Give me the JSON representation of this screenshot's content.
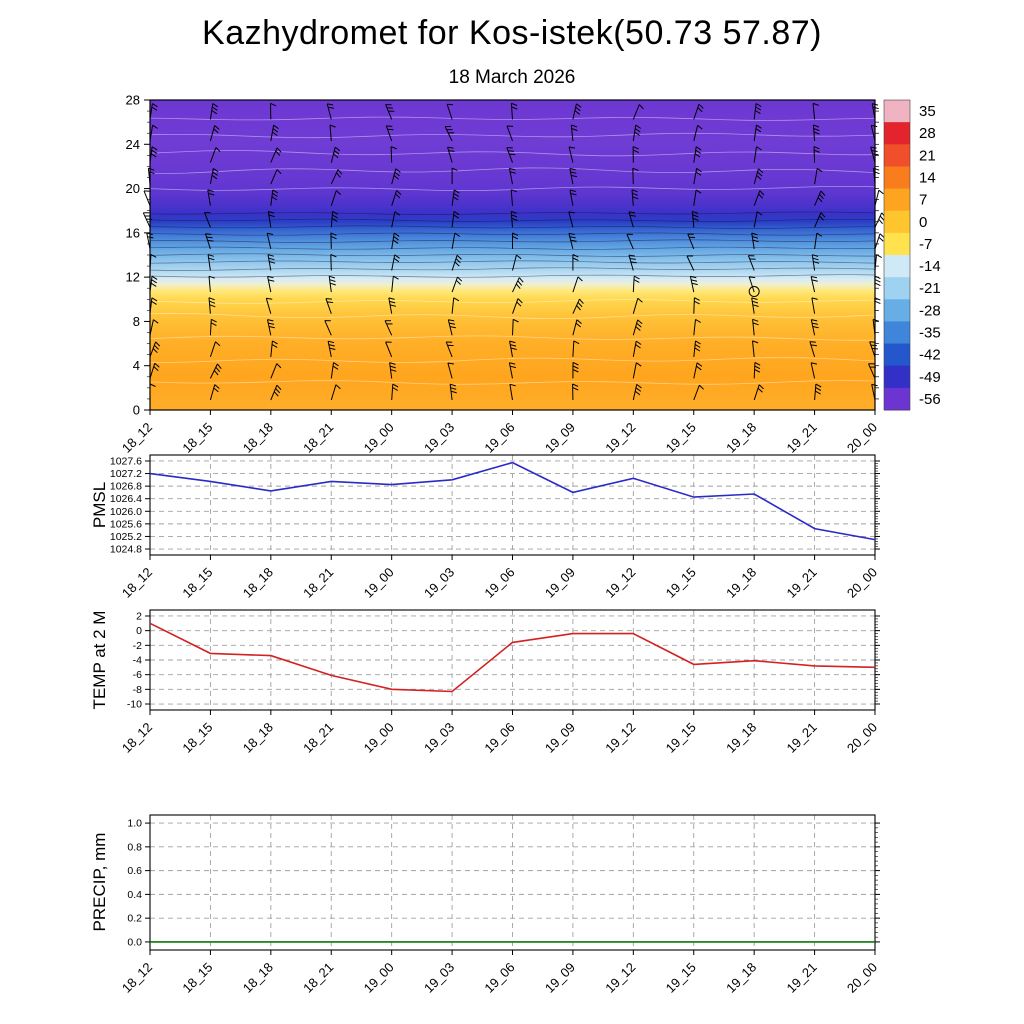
{
  "title": "Kazhydromet for Kos-istek(50.73 57.87)",
  "subtitle": "18 March 2026",
  "time_labels": [
    "18_12",
    "18_15",
    "18_18",
    "18_21",
    "19_00",
    "19_03",
    "19_06",
    "19_09",
    "19_12",
    "19_15",
    "19_18",
    "19_21",
    "20_00"
  ],
  "chart_data": [
    {
      "type": "heatmap",
      "name": "temperature-height-cross-section",
      "x": [
        "18_12",
        "18_15",
        "18_18",
        "18_21",
        "19_00",
        "19_03",
        "19_06",
        "19_09",
        "19_12",
        "19_15",
        "19_18",
        "19_21",
        "20_00"
      ],
      "ylim": [
        0,
        28
      ],
      "yticks": [
        0,
        4,
        8,
        12,
        16,
        20,
        24,
        28
      ],
      "overlay": "wind-barbs",
      "gradient_stops": [
        [
          28,
          "#6d38d2"
        ],
        [
          24,
          "#6f3cd4"
        ],
        [
          21,
          "#6838d2"
        ],
        [
          19.5,
          "#5d36d0"
        ],
        [
          18.5,
          "#4c33cc"
        ],
        [
          17.7,
          "#3a32c8"
        ],
        [
          17,
          "#2a3fc6"
        ],
        [
          16.3,
          "#3563d0"
        ],
        [
          15.5,
          "#4a87da"
        ],
        [
          14.5,
          "#67a9e4"
        ],
        [
          13.5,
          "#8cc4ec"
        ],
        [
          12.5,
          "#b3dbf2"
        ],
        [
          11.8,
          "#d9ecf5"
        ],
        [
          11.3,
          "#f2efc8"
        ],
        [
          10.8,
          "#ffe97e"
        ],
        [
          10,
          "#ffd84e"
        ],
        [
          8.5,
          "#ffc33a"
        ],
        [
          6,
          "#ffae27"
        ],
        [
          3,
          "#ffa51e"
        ],
        [
          0,
          "#ffae2a"
        ]
      ],
      "marker": {
        "time_index": 10,
        "height": 10.7
      },
      "colorbar": {
        "tick_labels": [
          "35",
          "28",
          "21",
          "14",
          "7",
          "0",
          "-7",
          "-14",
          "-21",
          "-28",
          "-35",
          "-42",
          "-49",
          "-56"
        ],
        "colors": [
          "#efb3c1",
          "#e3242c",
          "#ef4f2b",
          "#f97c1d",
          "#fda521",
          "#ffc52e",
          "#ffe24e",
          "#cfe9f6",
          "#9ed2f0",
          "#68aee6",
          "#3f85d9",
          "#2456cc",
          "#3230c6",
          "#6c34d0"
        ]
      }
    },
    {
      "type": "line",
      "name": "pmsl",
      "ylabel": "PMSL",
      "color": "#2a2ac8",
      "x": [
        "18_12",
        "18_15",
        "18_18",
        "18_21",
        "19_00",
        "19_03",
        "19_06",
        "19_09",
        "19_12",
        "19_15",
        "19_18",
        "19_21",
        "20_00"
      ],
      "yticks": [
        1027.6,
        1027.2,
        1026.8,
        1026.4,
        1026.0,
        1025.6,
        1025.2,
        1024.8
      ],
      "ytick_labels": [
        "1027.6",
        "1027.2",
        "1026.8",
        "1026.4",
        "1026.0",
        "1025.6",
        "1025.2",
        "1024.8"
      ],
      "values": [
        1027.2,
        1026.95,
        1026.65,
        1026.95,
        1026.85,
        1027.0,
        1027.55,
        1026.6,
        1027.05,
        1026.45,
        1026.55,
        1025.45,
        1025.1
      ]
    },
    {
      "type": "line",
      "name": "temp-2m",
      "ylabel": "TEMP at 2 M",
      "color": "#d42020",
      "x": [
        "18_12",
        "18_15",
        "18_18",
        "18_21",
        "19_00",
        "19_03",
        "19_06",
        "19_09",
        "19_12",
        "19_15",
        "19_18",
        "19_21",
        "20_00"
      ],
      "yticks": [
        2,
        0,
        -2,
        -4,
        -6,
        -8,
        -10
      ],
      "ytick_labels": [
        "2",
        "0",
        "-2",
        "-4",
        "-6",
        "-8",
        "-10"
      ],
      "values": [
        1.0,
        -3.1,
        -3.4,
        -6.1,
        -8.0,
        -8.3,
        -1.6,
        -0.4,
        -0.4,
        -4.6,
        -4.1,
        -4.8,
        -5.0
      ]
    },
    {
      "type": "line",
      "name": "precip",
      "ylabel": "PRECIP, mm",
      "color": "#0a7a0a",
      "x": [
        "18_12",
        "18_15",
        "18_18",
        "18_21",
        "19_00",
        "19_03",
        "19_06",
        "19_09",
        "19_12",
        "19_15",
        "19_18",
        "19_21",
        "20_00"
      ],
      "yticks": [
        1.0,
        0.8,
        0.6,
        0.4,
        0.2,
        0.0
      ],
      "ytick_labels": [
        "1.0",
        "0.8",
        "0.6",
        "0.4",
        "0.2",
        "0.0"
      ],
      "values": [
        0,
        0,
        0,
        0,
        0,
        0,
        0,
        0,
        0,
        0,
        0,
        0,
        0
      ]
    }
  ]
}
